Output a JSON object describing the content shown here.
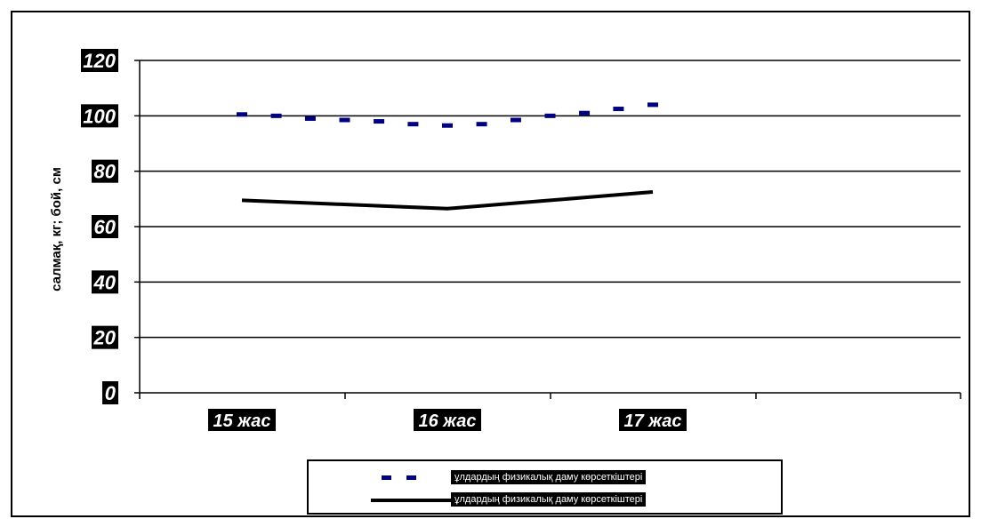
{
  "chart_data": {
    "type": "line",
    "categories": [
      "15 жас",
      "16 жас",
      "17 жас"
    ],
    "ylabel": "салмақ, кг; бой, см",
    "ylim": [
      0,
      120
    ],
    "yticks": [
      0,
      20,
      40,
      60,
      80,
      100,
      120
    ],
    "grid": true,
    "legend_position": "bottom",
    "series": [
      {
        "name": "ұлдардың физикалық даму көрсеткіштері",
        "style": "dashed",
        "color": "#000080",
        "x": [
          15,
          15.167,
          15.333,
          15.5,
          15.667,
          15.833,
          16,
          16.167,
          16.333,
          16.5,
          16.667,
          16.833,
          17
        ],
        "values": [
          100.5,
          100,
          99,
          98.5,
          98,
          97,
          96.5,
          97,
          98.5,
          100,
          101,
          102.5,
          104
        ]
      },
      {
        "name": "ұлдардың физикалық даму көрсеткіштері",
        "style": "solid",
        "color": "#000000",
        "x": [
          15,
          15.333,
          15.667,
          16,
          16.333,
          16.667,
          17
        ],
        "values": [
          69.5,
          68.5,
          67.5,
          66.5,
          68.5,
          70.5,
          72.5
        ]
      }
    ]
  }
}
